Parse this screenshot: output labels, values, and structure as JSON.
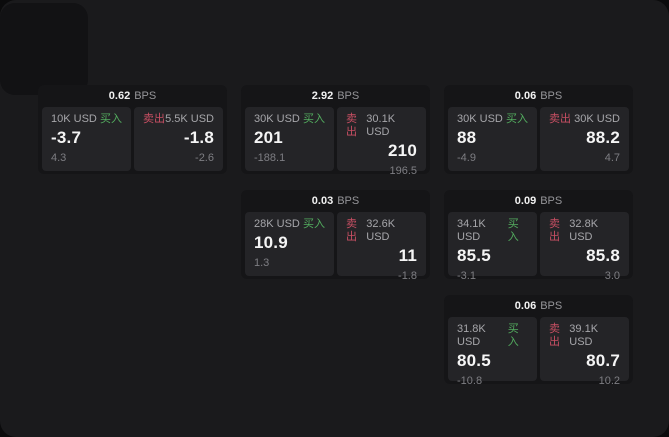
{
  "labels": {
    "buy": "买入",
    "sell": "卖出",
    "bps_suffix": "BPS"
  },
  "colors": {
    "buy_green": "#53ad5f",
    "sell_red": "#c84f63",
    "window_bg": "#1a1a1c",
    "card_bg": "#151517",
    "panel_bg": "#242427"
  },
  "cards": [
    {
      "bps": "0.62",
      "buy": {
        "amount": "10K USD",
        "value": "-3.7",
        "sub": "4.3"
      },
      "sell": {
        "amount": "5.5K USD",
        "value": "-1.8",
        "sub": "-2.6"
      }
    },
    {
      "bps": "2.92",
      "buy": {
        "amount": "30K USD",
        "value": "201",
        "sub": "-188.1"
      },
      "sell": {
        "amount": "30.1K USD",
        "value": "210",
        "sub": "196.5"
      }
    },
    {
      "bps": "0.06",
      "buy": {
        "amount": "30K USD",
        "value": "88",
        "sub": "-4.9"
      },
      "sell": {
        "amount": "30K USD",
        "value": "88.2",
        "sub": "4.7"
      }
    },
    {
      "bps": "0.03",
      "buy": {
        "amount": "28K USD",
        "value": "10.9",
        "sub": "1.3"
      },
      "sell": {
        "amount": "32.6K USD",
        "value": "11",
        "sub": "-1.8"
      }
    },
    {
      "bps": "0.09",
      "buy": {
        "amount": "34.1K USD",
        "value": "85.5",
        "sub": "-3.1"
      },
      "sell": {
        "amount": "32.8K USD",
        "value": "85.8",
        "sub": "3.0"
      }
    },
    {
      "bps": "0.06",
      "buy": {
        "amount": "31.8K USD",
        "value": "80.5",
        "sub": "-10.8"
      },
      "sell": {
        "amount": "39.1K USD",
        "value": "80.7",
        "sub": "10.2"
      }
    }
  ]
}
